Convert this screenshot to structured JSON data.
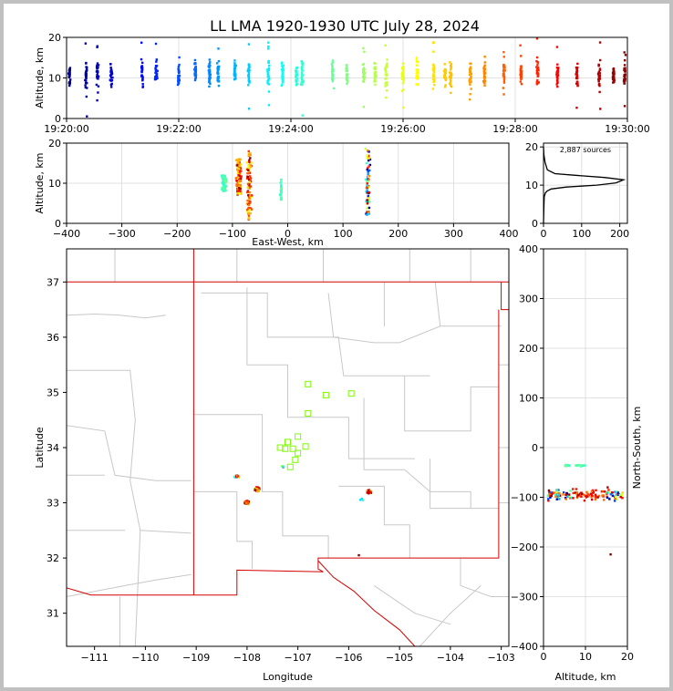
{
  "title": "LL LMA 1920-1930 UTC July 28, 2024",
  "colors": {
    "state_border": "#d40000",
    "county_border": "#c8c8c8",
    "station": "#7cfc00",
    "grid": "#d9d9d9"
  },
  "chart_data": [
    {
      "id": "time_altitude",
      "type": "scatter",
      "ylabel": "Altitude, km",
      "ylim": [
        0,
        20
      ],
      "yticks": [
        "0",
        "10",
        "20"
      ],
      "xlim_minutes": [
        0,
        10
      ],
      "xticks": [
        "19:20:00",
        "19:22:00",
        "19:24:00",
        "19:26:00",
        "19:28:00",
        "19:30:00"
      ],
      "color_encoding": "time (jet colormap)",
      "clusters_minutes": [
        0.05,
        0.35,
        0.55,
        0.8,
        1.35,
        1.6,
        2.0,
        2.3,
        2.55,
        2.7,
        3.0,
        3.25,
        3.6,
        3.85,
        4.1,
        4.2,
        4.75,
        5.0,
        5.3,
        5.5,
        5.7,
        6.0,
        6.25,
        6.55,
        6.75,
        6.85,
        7.2,
        7.45,
        7.8,
        8.1,
        8.4,
        8.75,
        9.1,
        9.5,
        9.75,
        9.95
      ]
    },
    {
      "id": "ew_altitude",
      "type": "scatter",
      "xlabel": "East-West, km",
      "ylabel": "Altitude, km",
      "xlim": [
        -400,
        400
      ],
      "ylim": [
        0,
        20
      ],
      "xticks": [
        "−400",
        "−300",
        "−200",
        "−100",
        "0",
        "100",
        "200",
        "300",
        "400"
      ],
      "yticks": [
        "0",
        "10",
        "20"
      ],
      "clusters": [
        {
          "x": -115,
          "alt_range": [
            8,
            12
          ]
        },
        {
          "x": -88,
          "alt_range": [
            7,
            16
          ]
        },
        {
          "x": -70,
          "alt_range": [
            1,
            18
          ]
        },
        {
          "x": -12,
          "alt_range": [
            5,
            11
          ]
        },
        {
          "x": 145,
          "alt_range": [
            2,
            19
          ]
        }
      ]
    },
    {
      "id": "altitude_histogram",
      "type": "line",
      "annotation": "2,887 sources",
      "xticks": [
        "0",
        "100",
        "200"
      ],
      "yticks": [
        "0",
        "10",
        "20"
      ],
      "xlim": [
        0,
        220
      ],
      "ylim": [
        0,
        21
      ],
      "profile": [
        [
          0,
          0
        ],
        [
          1,
          4
        ],
        [
          2,
          7
        ],
        [
          5,
          8
        ],
        [
          10,
          8.5
        ],
        [
          20,
          9
        ],
        [
          60,
          9.5
        ],
        [
          140,
          10
        ],
        [
          190,
          10.6
        ],
        [
          210,
          11.4
        ],
        [
          160,
          12
        ],
        [
          80,
          12.6
        ],
        [
          30,
          13
        ],
        [
          10,
          14
        ],
        [
          4,
          16
        ],
        [
          1,
          18
        ],
        [
          0,
          20
        ]
      ]
    },
    {
      "id": "plan_view",
      "type": "scatter",
      "xlabel": "Longitude",
      "ylabel": "Latitude",
      "xlim": [
        -111.55,
        -102.85
      ],
      "ylim": [
        30.4,
        37.6
      ],
      "xticks": [
        "−111",
        "−110",
        "−109",
        "−108",
        "−107",
        "−106",
        "−105",
        "−104",
        "−103"
      ],
      "yticks": [
        "31",
        "32",
        "33",
        "34",
        "35",
        "36",
        "37"
      ],
      "clusters": [
        {
          "lon": -108.2,
          "lat": 33.48,
          "n": 12
        },
        {
          "lon": -108.0,
          "lat": 33.0,
          "n": 40
        },
        {
          "lon": -107.8,
          "lat": 33.25,
          "n": 60
        },
        {
          "lon": -105.6,
          "lat": 33.2,
          "n": 45
        },
        {
          "lon": -107.3,
          "lat": 33.65,
          "n": 3
        },
        {
          "lon": -105.75,
          "lat": 33.06,
          "n": 3
        }
      ],
      "isolated_points": [
        {
          "lon": -105.8,
          "lat": 32.05
        }
      ],
      "stations": [
        {
          "lon": -106.8,
          "lat": 35.15
        },
        {
          "lon": -106.45,
          "lat": 34.95
        },
        {
          "lon": -105.95,
          "lat": 34.98
        },
        {
          "lon": -106.8,
          "lat": 34.62
        },
        {
          "lon": -107.0,
          "lat": 34.2
        },
        {
          "lon": -107.2,
          "lat": 34.1
        },
        {
          "lon": -107.35,
          "lat": 34.0
        },
        {
          "lon": -107.25,
          "lat": 33.98
        },
        {
          "lon": -107.1,
          "lat": 33.98
        },
        {
          "lon": -106.85,
          "lat": 34.02
        },
        {
          "lon": -107.0,
          "lat": 33.9
        },
        {
          "lon": -107.05,
          "lat": 33.78
        },
        {
          "lon": -107.15,
          "lat": 33.65
        }
      ]
    },
    {
      "id": "altitude_ns",
      "type": "scatter",
      "xlabel": "Altitude, km",
      "ylabel": "North-South, km",
      "xlim": [
        0,
        20
      ],
      "ylim": [
        -400,
        400
      ],
      "xticks": [
        "0",
        "10",
        "20"
      ],
      "yticks": [
        "400",
        "300",
        "200",
        "100",
        "0",
        "−100",
        "−200",
        "−300",
        "−400"
      ],
      "clusters": [
        {
          "alt_range": [
            5,
            10
          ],
          "ns": -36
        },
        {
          "alt_range": [
            1,
            19
          ],
          "ns": -95
        }
      ],
      "isolated_points": [
        {
          "alt": 16,
          "ns": -215
        }
      ]
    }
  ]
}
